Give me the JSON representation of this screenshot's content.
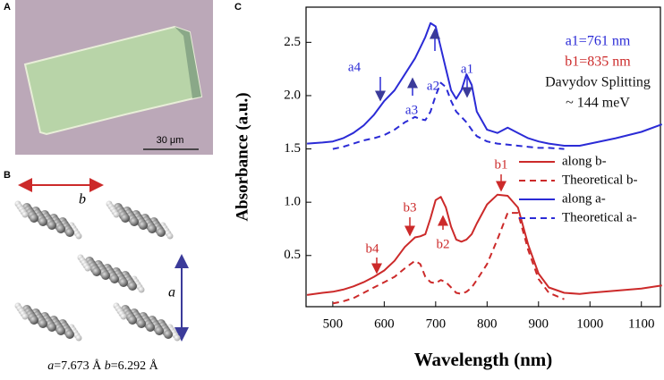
{
  "panel_a": {
    "label": "A",
    "scale_bar": "30 μm"
  },
  "panel_b": {
    "label": "B",
    "lattice_b": "b",
    "lattice_a": "a",
    "caption": {
      "a_symbol": "a",
      "a_value": "=7.673 Å ",
      "b_symbol": "b",
      "b_value": "=6.292 Å"
    }
  },
  "chart_data": {
    "type": "line",
    "panel_label": "C",
    "x_label": "Wavelength (nm)",
    "y_label": "Absorbance (a.u.)",
    "xlim": [
      448,
      1137
    ],
    "ylim": [
      0.02,
      2.83
    ],
    "xticks": [
      500,
      600,
      700,
      800,
      900,
      1000,
      1100
    ],
    "yticks": [
      0.5,
      1.0,
      1.5,
      2.0,
      2.5
    ],
    "x": [
      450,
      480,
      500,
      520,
      540,
      560,
      580,
      600,
      620,
      640,
      660,
      670,
      680,
      690,
      700,
      710,
      720,
      730,
      740,
      750,
      760,
      770,
      780,
      800,
      820,
      840,
      860,
      880,
      900,
      920,
      950,
      980,
      1000,
      1050,
      1100,
      1140
    ],
    "series": [
      {
        "name": "along b-",
        "color": "#cc2a2a",
        "dash": false,
        "values": [
          0.13,
          0.15,
          0.16,
          0.18,
          0.21,
          0.25,
          0.3,
          0.36,
          0.45,
          0.58,
          0.67,
          0.68,
          0.7,
          0.85,
          1.02,
          1.05,
          0.95,
          0.77,
          0.65,
          0.63,
          0.65,
          0.7,
          0.8,
          0.98,
          1.07,
          1.06,
          0.95,
          0.6,
          0.33,
          0.2,
          0.15,
          0.14,
          0.15,
          0.17,
          0.19,
          0.22
        ]
      },
      {
        "name": "Theoretical b-",
        "color": "#cc2a2a",
        "dash": true,
        "values": [
          null,
          null,
          0.05,
          0.07,
          0.1,
          0.15,
          0.2,
          0.25,
          0.3,
          0.38,
          0.45,
          0.42,
          0.3,
          0.25,
          0.24,
          0.27,
          0.25,
          0.2,
          0.15,
          0.14,
          0.16,
          0.2,
          0.27,
          0.42,
          0.65,
          0.9,
          0.9,
          0.55,
          0.28,
          0.15,
          0.09,
          null,
          null,
          null,
          null,
          null
        ]
      },
      {
        "name": "along a-",
        "color": "#2b2bd6",
        "dash": false,
        "values": [
          1.55,
          1.56,
          1.57,
          1.6,
          1.65,
          1.72,
          1.82,
          1.95,
          2.05,
          2.2,
          2.35,
          2.45,
          2.55,
          2.68,
          2.65,
          2.45,
          2.25,
          2.05,
          1.97,
          2.05,
          2.2,
          2.1,
          1.85,
          1.68,
          1.65,
          1.7,
          1.65,
          1.6,
          1.57,
          1.55,
          1.53,
          1.53,
          1.55,
          1.6,
          1.66,
          1.73
        ]
      },
      {
        "name": "Theoretical a-",
        "color": "#2b2bd6",
        "dash": true,
        "values": [
          null,
          null,
          1.5,
          1.52,
          1.55,
          1.58,
          1.6,
          1.63,
          1.68,
          1.75,
          1.8,
          1.78,
          1.77,
          1.85,
          2.0,
          2.12,
          2.08,
          1.95,
          1.85,
          1.8,
          1.75,
          1.68,
          1.62,
          1.57,
          1.55,
          1.54,
          1.53,
          1.52,
          1.51,
          1.51,
          1.5,
          null,
          null,
          null,
          null,
          null
        ]
      }
    ],
    "peak_labels": [
      {
        "text": "a1",
        "color": "#2b2bd6"
      },
      {
        "text": "a2",
        "color": "#2b2bd6"
      },
      {
        "text": "a3",
        "color": "#2b2bd6"
      },
      {
        "text": "a4",
        "color": "#2b2bd6"
      },
      {
        "text": "b1",
        "color": "#cc2a2a"
      },
      {
        "text": "b2",
        "color": "#cc2a2a"
      },
      {
        "text": "b3",
        "color": "#cc2a2a"
      },
      {
        "text": "b4",
        "color": "#cc2a2a"
      }
    ],
    "info": [
      {
        "text": "a1=761 nm",
        "color": "#2b2bd6"
      },
      {
        "text": "b1=835 nm",
        "color": "#cc2a2a"
      },
      {
        "text": "Davydov Splitting",
        "color": "#111111"
      },
      {
        "text": "~ 144 meV",
        "color": "#111111"
      }
    ]
  }
}
